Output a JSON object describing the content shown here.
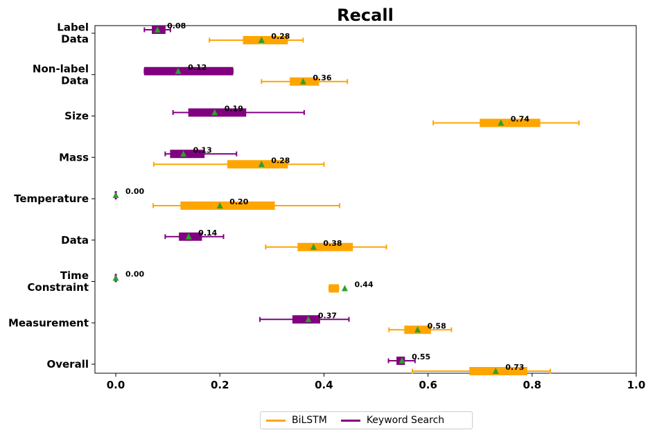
{
  "chart_data": {
    "type": "box",
    "title": "Recall",
    "xlim": [
      -0.04,
      1.0
    ],
    "xticks": [
      "0.0",
      "0.2",
      "0.4",
      "0.6",
      "0.8",
      "1.0"
    ],
    "categories": [
      "Label\nData",
      "Non-label\nData",
      "Size",
      "Mass",
      "Temperature",
      "Data",
      "Time\nConstraint",
      "Measurement",
      "Overall"
    ],
    "legend_position": "bottom-center",
    "grid": false,
    "series": [
      {
        "name": "BiLSTM",
        "color": "#FFA500",
        "boxes": [
          {
            "whisker_low": 0.18,
            "q1": 0.245,
            "q3": 0.33,
            "whisker_high": 0.36,
            "mean": 0.28,
            "label": "0.28"
          },
          {
            "whisker_low": 0.28,
            "q1": 0.335,
            "q3": 0.39,
            "whisker_high": 0.445,
            "mean": 0.36,
            "label": "0.36"
          },
          {
            "whisker_low": 0.61,
            "q1": 0.7,
            "q3": 0.815,
            "whisker_high": 0.89,
            "mean": 0.74,
            "label": "0.74"
          },
          {
            "whisker_low": 0.073,
            "q1": 0.215,
            "q3": 0.33,
            "whisker_high": 0.4,
            "mean": 0.28,
            "label": "0.28"
          },
          {
            "whisker_low": 0.072,
            "q1": 0.125,
            "q3": 0.305,
            "whisker_high": 0.43,
            "mean": 0.2,
            "label": "0.20"
          },
          {
            "whisker_low": 0.288,
            "q1": 0.35,
            "q3": 0.455,
            "whisker_high": 0.52,
            "mean": 0.38,
            "label": "0.38"
          },
          {
            "whisker_low": 0.41,
            "q1": 0.41,
            "q3": 0.428,
            "whisker_high": 0.428,
            "mean": 0.44,
            "label": "0.44"
          },
          {
            "whisker_low": 0.525,
            "q1": 0.555,
            "q3": 0.605,
            "whisker_high": 0.645,
            "mean": 0.58,
            "label": "0.58"
          },
          {
            "whisker_low": 0.57,
            "q1": 0.68,
            "q3": 0.79,
            "whisker_high": 0.835,
            "mean": 0.73,
            "label": "0.73"
          }
        ]
      },
      {
        "name": "Keyword Search",
        "color": "#800080",
        "boxes": [
          {
            "whisker_low": 0.055,
            "q1": 0.07,
            "q3": 0.095,
            "whisker_high": 0.105,
            "mean": 0.08,
            "label": "0.08"
          },
          {
            "whisker_low": 0.055,
            "q1": 0.055,
            "q3": 0.225,
            "whisker_high": 0.225,
            "mean": 0.12,
            "label": "0.12"
          },
          {
            "whisker_low": 0.11,
            "q1": 0.14,
            "q3": 0.25,
            "whisker_high": 0.362,
            "mean": 0.19,
            "label": "0.19"
          },
          {
            "whisker_low": 0.095,
            "q1": 0.105,
            "q3": 0.17,
            "whisker_high": 0.232,
            "mean": 0.13,
            "label": "0.13"
          },
          {
            "whisker_low": 0.0,
            "q1": 0.0,
            "q3": 0.0,
            "whisker_high": 0.0,
            "mean": 0.0,
            "label": "0.00"
          },
          {
            "whisker_low": 0.095,
            "q1": 0.122,
            "q3": 0.165,
            "whisker_high": 0.207,
            "mean": 0.14,
            "label": "0.14"
          },
          {
            "whisker_low": 0.0,
            "q1": 0.0,
            "q3": 0.0,
            "whisker_high": 0.0,
            "mean": 0.0,
            "label": "0.00"
          },
          {
            "whisker_low": 0.277,
            "q1": 0.34,
            "q3": 0.392,
            "whisker_high": 0.448,
            "mean": 0.37,
            "label": "0.37"
          },
          {
            "whisker_low": 0.524,
            "q1": 0.54,
            "q3": 0.555,
            "whisker_high": 0.575,
            "mean": 0.55,
            "label": "0.55"
          }
        ]
      }
    ],
    "mean_marker_color": "#2CA02C"
  },
  "legend": {
    "items": [
      {
        "label": "BiLSTM",
        "color": "#FFA500"
      },
      {
        "label": "Keyword Search",
        "color": "#800080"
      }
    ]
  }
}
